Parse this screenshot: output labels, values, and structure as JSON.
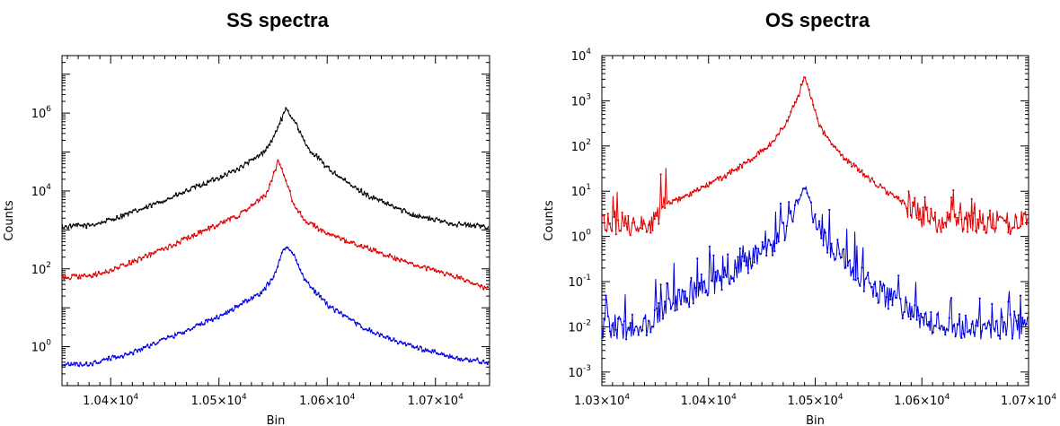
{
  "chart_data": [
    {
      "type": "line",
      "title": "SS spectra",
      "xlabel": "Bin",
      "ylabel": "Counts",
      "xlim": [
        10355,
        10750
      ],
      "ylim": [
        0.1,
        30000000
      ],
      "yscale": "log",
      "x_ticks": [
        {
          "value": 10400,
          "mant": "1.04×10",
          "exp": "4"
        },
        {
          "value": 10500,
          "mant": "1.05×10",
          "exp": "4"
        },
        {
          "value": 10600,
          "mant": "1.06×10",
          "exp": "4"
        },
        {
          "value": 10700,
          "mant": "1.07×10",
          "exp": "4"
        }
      ],
      "y_ticks": [
        {
          "value": 1,
          "mant": "10",
          "exp": "0"
        },
        {
          "value": 100,
          "mant": "10",
          "exp": "2"
        },
        {
          "value": 10000,
          "mant": "10",
          "exp": "4"
        },
        {
          "value": 1000000,
          "mant": "10",
          "exp": "6"
        }
      ],
      "series": [
        {
          "color": "#000000",
          "x": [
            10355,
            10380,
            10400,
            10420,
            10440,
            10460,
            10480,
            10500,
            10520,
            10540,
            10550,
            10557,
            10562,
            10570,
            10580,
            10600,
            10620,
            10640,
            10660,
            10680,
            10700,
            10720,
            10750
          ],
          "y": [
            1200,
            1300,
            1800,
            2800,
            4500,
            7500,
            13000,
            22000,
            40000,
            90000,
            220000,
            650000,
            1200000,
            650000,
            150000,
            40000,
            15000,
            7000,
            4000,
            2500,
            1800,
            1400,
            1200
          ]
        },
        {
          "color": "#e00000",
          "x": [
            10355,
            10380,
            10400,
            10420,
            10440,
            10460,
            10480,
            10500,
            10520,
            10530,
            10545,
            10550,
            10555,
            10560,
            10570,
            10580,
            10600,
            10620,
            10640,
            10660,
            10680,
            10700,
            10720,
            10750
          ],
          "y": [
            60,
            65,
            90,
            150,
            250,
            450,
            800,
            1400,
            2500,
            4000,
            9000,
            25000,
            60000,
            25000,
            4000,
            1700,
            800,
            500,
            320,
            200,
            130,
            90,
            60,
            30
          ]
        },
        {
          "color": "#0000e0",
          "x": [
            10355,
            10380,
            10400,
            10420,
            10440,
            10460,
            10480,
            10500,
            10520,
            10540,
            10550,
            10557,
            10562,
            10570,
            10580,
            10600,
            10620,
            10640,
            10660,
            10680,
            10700,
            10720,
            10750
          ],
          "y": [
            0.35,
            0.35,
            0.5,
            0.7,
            1.2,
            2,
            3.5,
            6,
            12,
            25,
            60,
            200,
            400,
            200,
            50,
            12,
            5,
            2.5,
            1.5,
            1,
            0.7,
            0.5,
            0.4
          ]
        }
      ]
    },
    {
      "type": "line",
      "title": "OS spectra",
      "xlabel": "Bin",
      "ylabel": "Counts",
      "xlim": [
        10300,
        10700
      ],
      "ylim": [
        0.0005,
        10000
      ],
      "yscale": "log",
      "x_ticks": [
        {
          "value": 10300,
          "mant": "1.03×10",
          "exp": "4"
        },
        {
          "value": 10400,
          "mant": "1.04×10",
          "exp": "4"
        },
        {
          "value": 10500,
          "mant": "1.05×10",
          "exp": "4"
        },
        {
          "value": 10600,
          "mant": "1.06×10",
          "exp": "4"
        },
        {
          "value": 10700,
          "mant": "1.07×10",
          "exp": "4"
        }
      ],
      "y_ticks": [
        {
          "value": 0.001,
          "mant": "10",
          "exp": "-3"
        },
        {
          "value": 0.01,
          "mant": "10",
          "exp": "-2"
        },
        {
          "value": 0.1,
          "mant": "10",
          "exp": "-1"
        },
        {
          "value": 1,
          "mant": "10",
          "exp": "0"
        },
        {
          "value": 10,
          "mant": "10",
          "exp": "1"
        },
        {
          "value": 100,
          "mant": "10",
          "exp": "2"
        },
        {
          "value": 1000,
          "mant": "10",
          "exp": "3"
        },
        {
          "value": 10000,
          "mant": "10",
          "exp": "4"
        }
      ],
      "series": [
        {
          "color": "#e00000",
          "x": [
            10300,
            10320,
            10340,
            10350,
            10360,
            10380,
            10400,
            10420,
            10440,
            10460,
            10475,
            10485,
            10490,
            10495,
            10505,
            10520,
            10540,
            10560,
            10580,
            10600,
            10620,
            10640,
            10660,
            10680,
            10700
          ],
          "y": [
            2,
            2,
            2,
            2.5,
            5,
            8,
            14,
            25,
            50,
            120,
            400,
            1500,
            3500,
            1500,
            250,
            80,
            30,
            13,
            6,
            3,
            2,
            2,
            2,
            2,
            2
          ]
        },
        {
          "color": "#0000e0",
          "x": [
            10300,
            10320,
            10340,
            10350,
            10360,
            10380,
            10400,
            10420,
            10440,
            10460,
            10475,
            10485,
            10490,
            10495,
            10505,
            10520,
            10540,
            10560,
            10580,
            10600,
            10620,
            10640,
            10660,
            10680,
            10700
          ],
          "y": [
            0.01,
            0.01,
            0.01,
            0.015,
            0.03,
            0.05,
            0.08,
            0.15,
            0.3,
            0.7,
            2,
            6,
            14,
            6,
            1.2,
            0.4,
            0.15,
            0.06,
            0.03,
            0.015,
            0.01,
            0.01,
            0.01,
            0.01,
            0.01
          ]
        }
      ]
    }
  ]
}
